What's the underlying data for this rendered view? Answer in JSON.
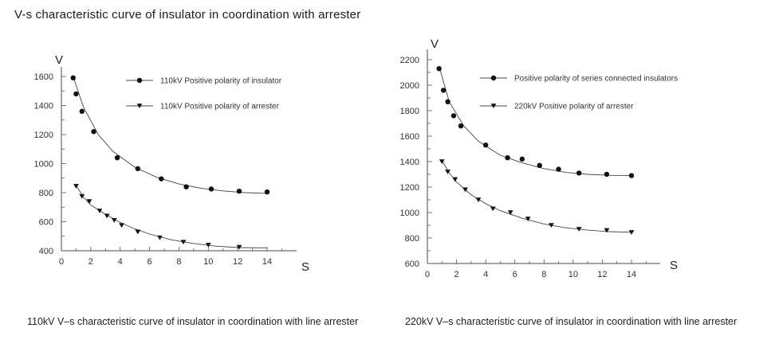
{
  "page": {
    "title": "V-s characteristic curve of insulator in coordination with arrester"
  },
  "chart_data": [
    {
      "type": "scatter",
      "caption": "110kV V–s characteristic curve of insulator in coordination with line arrester",
      "ylabel": "V",
      "xlabel": "S",
      "xlim": [
        0,
        14
      ],
      "ylim": [
        400,
        1600
      ],
      "x_ticks": [
        0,
        2,
        4,
        6,
        8,
        10,
        12,
        14
      ],
      "y_ticks": [
        400,
        600,
        800,
        1000,
        1200,
        1400,
        1600
      ],
      "legend_position": "top-right",
      "grid": false,
      "series": [
        {
          "name": "110kV Positive polarity of insulator",
          "marker": "circle",
          "points": [
            [
              0.8,
              1590
            ],
            [
              1,
              1480
            ],
            [
              1.4,
              1360
            ],
            [
              2.2,
              1220
            ],
            [
              3.8,
              1040
            ],
            [
              5.2,
              965
            ],
            [
              6.8,
              895
            ],
            [
              8.5,
              840
            ],
            [
              10.2,
              825
            ],
            [
              12.1,
              810
            ],
            [
              14,
              805
            ]
          ],
          "curve": [
            [
              0.8,
              1600
            ],
            [
              1.5,
              1390
            ],
            [
              2.5,
              1200
            ],
            [
              3.5,
              1085
            ],
            [
              5,
              975
            ],
            [
              6.5,
              905
            ],
            [
              8,
              860
            ],
            [
              9.5,
              830
            ],
            [
              11,
              812
            ],
            [
              12.5,
              800
            ],
            [
              14,
              795
            ]
          ]
        },
        {
          "name": "110kV Positive polarity of arrester",
          "marker": "triangle-down",
          "points": [
            [
              1,
              845
            ],
            [
              1.4,
              775
            ],
            [
              1.9,
              740
            ],
            [
              2.6,
              675
            ],
            [
              3.1,
              640
            ],
            [
              3.6,
              610
            ],
            [
              4.1,
              575
            ],
            [
              5.2,
              530
            ],
            [
              6.7,
              490
            ],
            [
              8.3,
              460
            ],
            [
              10,
              440
            ],
            [
              12.1,
              425
            ]
          ],
          "curve": [
            [
              1,
              850
            ],
            [
              1.5,
              770
            ],
            [
              2,
              715
            ],
            [
              3,
              650
            ],
            [
              4,
              595
            ],
            [
              5,
              550
            ],
            [
              6,
              515
            ],
            [
              7.5,
              475
            ],
            [
              9,
              450
            ],
            [
              10.5,
              432
            ],
            [
              12,
              422
            ],
            [
              14,
              420
            ]
          ]
        }
      ]
    },
    {
      "type": "scatter",
      "caption": "220kV V–s characteristic curve of insulator in coordination with line arrester",
      "ylabel": "V",
      "xlabel": "S",
      "xlim": [
        0,
        14
      ],
      "ylim": [
        600,
        2200
      ],
      "x_ticks": [
        0,
        2,
        4,
        6,
        8,
        10,
        12,
        14
      ],
      "y_ticks": [
        600,
        800,
        1000,
        1200,
        1400,
        1600,
        1800,
        2000,
        2200
      ],
      "legend_position": "top-right",
      "grid": false,
      "series": [
        {
          "name": "Positive polarity of series connected insulators",
          "marker": "circle",
          "points": [
            [
              0.8,
              2130
            ],
            [
              1.1,
              1960
            ],
            [
              1.4,
              1870
            ],
            [
              1.8,
              1760
            ],
            [
              2.3,
              1680
            ],
            [
              4,
              1530
            ],
            [
              5.5,
              1430
            ],
            [
              6.5,
              1420
            ],
            [
              7.7,
              1370
            ],
            [
              9,
              1340
            ],
            [
              10.4,
              1310
            ],
            [
              12.3,
              1300
            ],
            [
              14,
              1290
            ]
          ],
          "curve": [
            [
              0.8,
              2150
            ],
            [
              1.5,
              1870
            ],
            [
              2.5,
              1680
            ],
            [
              3.5,
              1560
            ],
            [
              5,
              1450
            ],
            [
              6.5,
              1390
            ],
            [
              8,
              1345
            ],
            [
              9.5,
              1315
            ],
            [
              11,
              1300
            ],
            [
              12.5,
              1292
            ],
            [
              14,
              1290
            ]
          ]
        },
        {
          "name": "220kV Positive polarity of arrester",
          "marker": "triangle-down",
          "points": [
            [
              1,
              1400
            ],
            [
              1.4,
              1320
            ],
            [
              1.9,
              1260
            ],
            [
              2.6,
              1180
            ],
            [
              3.5,
              1100
            ],
            [
              4.5,
              1030
            ],
            [
              5.7,
              1000
            ],
            [
              6.9,
              950
            ],
            [
              8.5,
              900
            ],
            [
              10.4,
              870
            ],
            [
              12.3,
              860
            ],
            [
              14,
              845
            ]
          ],
          "curve": [
            [
              1,
              1410
            ],
            [
              1.5,
              1310
            ],
            [
              2,
              1240
            ],
            [
              3,
              1140
            ],
            [
              4,
              1070
            ],
            [
              5,
              1015
            ],
            [
              6.5,
              955
            ],
            [
              8,
              910
            ],
            [
              9.5,
              880
            ],
            [
              11,
              862
            ],
            [
              12.5,
              850
            ],
            [
              14,
              845
            ]
          ]
        }
      ]
    }
  ]
}
